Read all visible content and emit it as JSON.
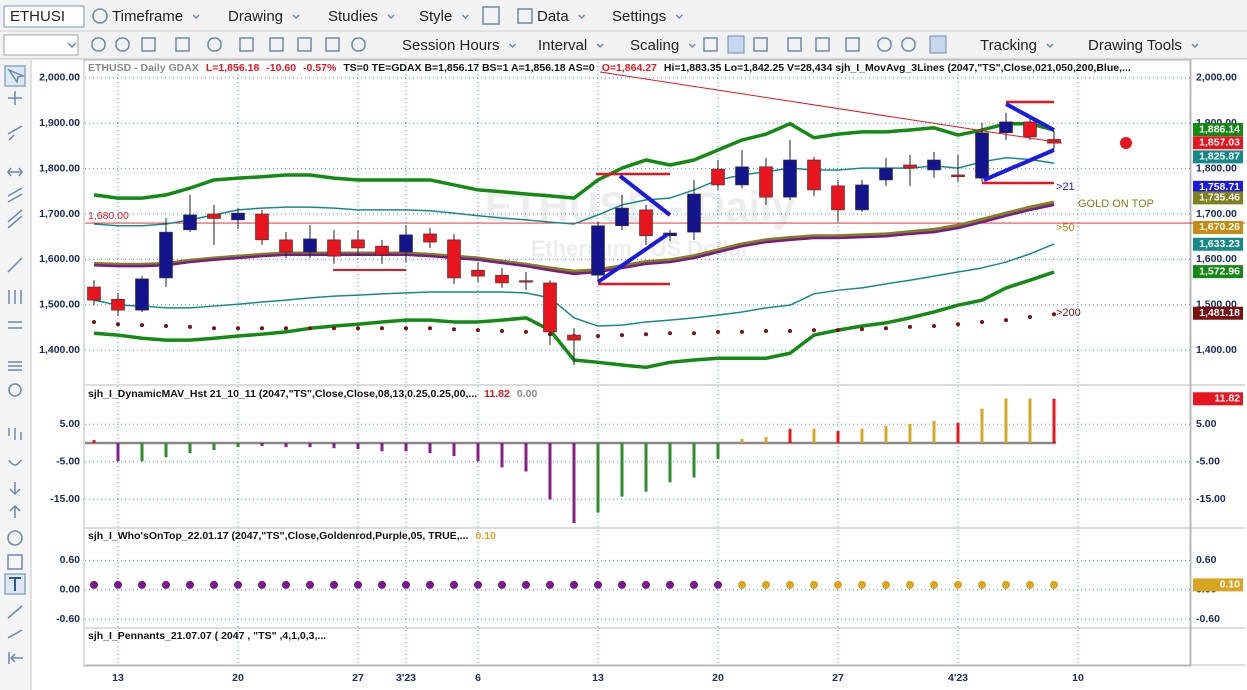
{
  "toolbar": {
    "symbol": "ETHUSI",
    "items": [
      "Timeframe",
      "Drawing",
      "Studies",
      "Style",
      "Data",
      "Settings"
    ],
    "items2": [
      "Session Hours",
      "Interval",
      "Scaling",
      "Tracking",
      "Drawing Tools"
    ]
  },
  "chart_data": [
    {
      "type": "candlestick",
      "header": [
        {
          "text": "ETHUSD - Daily  GDAX",
          "color": "#8a8a8a"
        },
        {
          "text": "L=1,856.18",
          "color": "#e8141e"
        },
        {
          "text": "-10.60",
          "color": "#e8141e"
        },
        {
          "text": "-0.57%",
          "color": "#e8141e"
        },
        {
          "text": "TS=0  TE=GDAX  B=1,856.17  BS=1  A=1,856.18  AS=0",
          "color": "#111111"
        },
        {
          "text": "O=1,864.27",
          "color": "#e8141e"
        },
        {
          "text": "Hi=1,883.35  Lo=1,842.25  V=28,434  sjh_I_MovAvg_3Lines (2047,\"TS\",Close,021,050,200,Blue,...",
          "color": "#111111"
        }
      ],
      "watermark": [
        "ETHUSD - Daily",
        "Ethereum / US Dollar"
      ],
      "categories": [
        null,
        "13",
        null,
        null,
        null,
        null,
        "20",
        null,
        null,
        null,
        null,
        "27",
        null,
        "3'23",
        null,
        null,
        "6",
        null,
        null,
        null,
        null,
        "13",
        null,
        null,
        null,
        null,
        "20",
        null,
        null,
        null,
        null,
        "27",
        null,
        null,
        null,
        null,
        "4'23",
        null,
        null,
        null,
        null,
        "10"
      ],
      "open": [
        1539,
        1512,
        1488,
        1559,
        1665,
        1700,
        1687,
        1700,
        1643,
        1616,
        1643,
        1643,
        1629,
        1616,
        1656,
        1643,
        1576,
        1565,
        1553,
        1548,
        1433,
        1565,
        1674,
        1709,
        1652,
        1660,
        1799,
        1764,
        1804,
        1737,
        1819,
        1762,
        1709,
        1775,
        1808,
        1797,
        1786,
        1779,
        1879,
        1903,
        1864.27,
        null
      ],
      "high": [
        1554,
        1526,
        1563,
        1691,
        1742,
        1720,
        1713,
        1709,
        1660,
        1676,
        1665,
        1665,
        1643,
        1676,
        1669,
        1656,
        1594,
        1581,
        1572,
        1554,
        1448,
        1683,
        1742,
        1720,
        1665,
        1775,
        1819,
        1841,
        1823,
        1863,
        1826,
        1775,
        1775,
        1823,
        1830,
        1837,
        1830,
        1901,
        1923,
        1917,
        1883.35,
        null
      ],
      "low": [
        1499,
        1475,
        1484,
        1539,
        1660,
        1632,
        1667,
        1632,
        1603,
        1603,
        1590,
        1607,
        1590,
        1594,
        1625,
        1546,
        1550,
        1537,
        1532,
        1411,
        1367,
        1554,
        1665,
        1632,
        1640,
        1643,
        1753,
        1757,
        1720,
        1731,
        1740,
        1683,
        1705,
        1762,
        1762,
        1780,
        1771,
        1771,
        1863,
        1863,
        1842.25,
        null
      ],
      "close": [
        1510,
        1488,
        1557,
        1660,
        1698,
        1690,
        1702,
        1643,
        1616,
        1645,
        1607,
        1625,
        1610,
        1654,
        1638,
        1559,
        1563,
        1548,
        1552,
        1440,
        1422,
        1674,
        1713,
        1652,
        1658,
        1744,
        1764,
        1804,
        1737,
        1819,
        1753,
        1709,
        1764,
        1801,
        1801,
        1819,
        1782,
        1879,
        1903,
        1870,
        1856.18,
        null
      ],
      "up_color": "#14148c",
      "down_color": "#e8141e",
      "series": [
        {
          "color": "#138a13",
          "style": "line",
          "width": 3.5,
          "values": [
            1742,
            1735,
            1735,
            1742,
            1757,
            1775,
            1779,
            1782,
            1786,
            1786,
            1779,
            1775,
            1775,
            1775,
            1775,
            1764,
            1753,
            1749,
            1744,
            1740,
            1735,
            1775,
            1801,
            1819,
            1808,
            1819,
            1841,
            1863,
            1876,
            1899,
            1868,
            1876,
            1881,
            1881,
            1885,
            1890,
            1874,
            1885,
            1899,
            1899,
            1885,
            null
          ]
        },
        {
          "color": "#138a13",
          "style": "line",
          "width": 3.5,
          "values": [
            1437,
            1433,
            1426,
            1422,
            1422,
            1426,
            1431,
            1435,
            1440,
            1448,
            1453,
            1457,
            1462,
            1466,
            1466,
            1462,
            1462,
            1466,
            1471,
            1444,
            1378,
            1373,
            1367,
            1362,
            1373,
            1378,
            1382,
            1382,
            1382,
            1393,
            1433,
            1444,
            1453,
            1460,
            1471,
            1484,
            1499,
            1510,
            1537,
            1554,
            1572,
            null
          ]
        },
        {
          "color": "#168a8a",
          "style": "line",
          "width": 1.5,
          "values": [
            1678,
            1674,
            1674,
            1678,
            1687,
            1698,
            1709,
            1713,
            1715,
            1715,
            1713,
            1709,
            1709,
            1709,
            1707,
            1702,
            1696,
            1691,
            1687,
            1682,
            1678,
            1698,
            1720,
            1731,
            1735,
            1753,
            1775,
            1786,
            1793,
            1801,
            1797,
            1797,
            1801,
            1801,
            1801,
            1806,
            1801,
            1815,
            1824,
            1820,
            1812,
            null
          ]
        },
        {
          "color": "#168a8a",
          "style": "line",
          "width": 1.5,
          "values": [
            1510,
            1499,
            1497,
            1493,
            1493,
            1497,
            1501,
            1506,
            1510,
            1515,
            1519,
            1521,
            1524,
            1526,
            1528,
            1528,
            1528,
            1528,
            1526,
            1515,
            1471,
            1453,
            1455,
            1462,
            1466,
            1471,
            1477,
            1484,
            1493,
            1499,
            1524,
            1532,
            1537,
            1546,
            1554,
            1563,
            1572,
            1581,
            1594,
            1612,
            1634,
            null
          ]
        },
        {
          "color": "#808020",
          "style": "line",
          "width": 4,
          "values": [
            1590,
            1588,
            1588,
            1590,
            1597,
            1602,
            1606,
            1610,
            1613,
            1613,
            1613,
            1613,
            1613,
            1613,
            1610,
            1606,
            1602,
            1595,
            1588,
            1580,
            1573,
            1576,
            1585,
            1594,
            1598,
            1607,
            1620,
            1633,
            1642,
            1647,
            1651,
            1651,
            1653,
            1655,
            1660,
            1665,
            1674,
            1687,
            1701,
            1714,
            1725,
            null
          ]
        },
        {
          "color": "#7a1a8a",
          "style": "line",
          "width": 2.5,
          "values": [
            1587,
            1585,
            1585,
            1587,
            1594,
            1599,
            1603,
            1607,
            1610,
            1610,
            1610,
            1610,
            1610,
            1610,
            1607,
            1603,
            1599,
            1592,
            1585,
            1576,
            1568,
            1572,
            1581,
            1590,
            1594,
            1603,
            1616,
            1629,
            1638,
            1643,
            1647,
            1647,
            1649,
            1651,
            1656,
            1660,
            1669,
            1682,
            1696,
            1709,
            1720,
            null
          ]
        },
        {
          "color": "#7a1010",
          "style": "dots",
          "width": 2,
          "values": [
            1462,
            1457,
            1455,
            1453,
            1451,
            1448,
            1448,
            1448,
            1448,
            1448,
            1448,
            1448,
            1448,
            1448,
            1448,
            1446,
            1444,
            1442,
            1440,
            1435,
            1431,
            1431,
            1433,
            1435,
            1437,
            1437,
            1440,
            1440,
            1442,
            1442,
            1444,
            1444,
            1446,
            1448,
            1451,
            1453,
            1457,
            1462,
            1466,
            1473,
            1479,
            null
          ]
        }
      ],
      "hline": {
        "value": 1680,
        "label": "1,680.00",
        "color": "#e8141e"
      },
      "annotations": [
        {
          "text": ">21",
          "color": "#1a1ae0"
        },
        {
          "text": "GOLD ON TOP",
          "color": "#808020"
        },
        {
          "text": ">50",
          "color": "#c88a10"
        },
        {
          "text": ">200",
          "color": "#7a1010"
        }
      ],
      "price_labels": [
        {
          "value": 1886.14,
          "label": "1,886.14",
          "color": "#138a13"
        },
        {
          "value": 1857.03,
          "label": "1,857.03",
          "color": "#e8141e"
        },
        {
          "value": 1825.87,
          "label": "1,825.87",
          "color": "#168a8a"
        },
        {
          "value": 1758.71,
          "label": "1,758.71",
          "color": "#1a1ae0"
        },
        {
          "value": 1735.46,
          "label": "1,735.46",
          "color": "#808020"
        },
        {
          "value": 1670.26,
          "label": "1,670.26",
          "color": "#c88a10"
        },
        {
          "value": 1633.23,
          "label": "1,633.23",
          "color": "#168a8a"
        },
        {
          "value": 1572.96,
          "label": "1,572.96",
          "color": "#138a13"
        },
        {
          "value": 1481.18,
          "label": "1,481.18",
          "color": "#7a1010"
        }
      ],
      "ylim": [
        1323,
        2035
      ],
      "yticks": [
        {
          "value": 1400,
          "label": "1,400.00"
        },
        {
          "value": 1500,
          "label": "1,500.00"
        },
        {
          "value": 1600,
          "label": "1,600.00"
        },
        {
          "value": 1700,
          "label": "1,700.00"
        },
        {
          "value": 1800,
          "label": "1,800.00"
        },
        {
          "value": 1900,
          "label": "1,900.00"
        },
        {
          "value": 2000,
          "label": "2,000.00"
        }
      ],
      "grid": true
    },
    {
      "type": "bar",
      "header": [
        {
          "text": "sjh_I_DynamicMAV_Hst 21_10_11 (2047,\"TS\",Close,Close,08,13,0.25,0.25,00,...",
          "color": "#111111"
        },
        {
          "text": "11.82",
          "color": "#e8141e"
        },
        {
          "text": "0.00",
          "color": "#8a8a8a"
        }
      ],
      "values": [
        0.8,
        -4.9,
        -4.9,
        -3.8,
        -2.7,
        -1.9,
        -1.1,
        -0.8,
        -1.1,
        -1.1,
        -1.4,
        -1.6,
        -2.2,
        -2.2,
        -2.7,
        -3.5,
        -4.9,
        -6.5,
        -7.6,
        -15.1,
        -21.4,
        -18.6,
        -14.3,
        -13,
        -10.5,
        -9.2,
        -4.3,
        1.1,
        1.6,
        3.8,
        3.8,
        3.2,
        3.8,
        4.6,
        5.1,
        5.9,
        5.4,
        9.2,
        11.9,
        11.9,
        11.82,
        null
      ],
      "colors": [
        "#e8141e",
        "#8b1a8b",
        "#2e8b2e",
        "#2e8b2e",
        "#2e8b2e",
        "#2e8b2e",
        "#2e8b2e",
        "#8b1a8b",
        "#8b1a8b",
        "#8b1a8b",
        "#8b1a8b",
        "#8b1a8b",
        "#8b1a8b",
        "#8b1a8b",
        "#8b1a8b",
        "#8b1a8b",
        "#8b1a8b",
        "#8b1a8b",
        "#8b1a8b",
        "#8b1a8b",
        "#8b1a8b",
        "#2e8b2e",
        "#2e8b2e",
        "#2e8b2e",
        "#2e8b2e",
        "#2e8b2e",
        "#2e8b2e",
        "#daa520",
        "#daa520",
        "#e8141e",
        "#daa520",
        "#e8141e",
        "#daa520",
        "#daa520",
        "#daa520",
        "#daa520",
        "#e8141e",
        "#daa520",
        "#daa520",
        "#daa520",
        "#e8141e",
        null
      ],
      "price_labels": [
        {
          "value": 11.82,
          "label": "11.82",
          "color": "#e8141e"
        }
      ],
      "ylim": [
        -22.7,
        14.7
      ],
      "yticks": [
        {
          "value": 5,
          "label": "5.00"
        },
        {
          "value": -5,
          "label": "-5.00"
        },
        {
          "value": -15,
          "label": "-15.00"
        }
      ],
      "grid": true
    },
    {
      "type": "dots",
      "header": [
        {
          "text": "sjh_I_Who'sOnTop_22.01.17 (2047,\"TS\",Close,Goldenrod,Purple,05, TRUE,...",
          "color": "#111111"
        },
        {
          "text": "0.10",
          "color": "#daa520"
        }
      ],
      "values": [
        0.1,
        0.1,
        0.1,
        0.1,
        0.1,
        0.1,
        0.1,
        0.1,
        0.1,
        0.1,
        0.1,
        0.1,
        0.1,
        0.1,
        0.1,
        0.1,
        0.1,
        0.1,
        0.1,
        0.1,
        0.1,
        0.1,
        0.1,
        0.1,
        0.1,
        0.1,
        0.1,
        0.1,
        0.1,
        0.1,
        0.1,
        0.1,
        0.1,
        0.1,
        0.1,
        0.1,
        0.1,
        0.1,
        0.1,
        0.1,
        0.1,
        null
      ],
      "colors": [
        "#7a1a8a",
        "#7a1a8a",
        "#7a1a8a",
        "#7a1a8a",
        "#7a1a8a",
        "#7a1a8a",
        "#7a1a8a",
        "#7a1a8a",
        "#7a1a8a",
        "#7a1a8a",
        "#7a1a8a",
        "#7a1a8a",
        "#7a1a8a",
        "#7a1a8a",
        "#7a1a8a",
        "#7a1a8a",
        "#7a1a8a",
        "#7a1a8a",
        "#7a1a8a",
        "#7a1a8a",
        "#7a1a8a",
        "#7a1a8a",
        "#7a1a8a",
        "#7a1a8a",
        "#7a1a8a",
        "#7a1a8a",
        "#7a1a8a",
        "#daa520",
        "#daa520",
        "#daa520",
        "#daa520",
        "#daa520",
        "#daa520",
        "#daa520",
        "#daa520",
        "#daa520",
        "#daa520",
        "#daa520",
        "#daa520",
        "#daa520",
        "#daa520",
        null
      ],
      "price_labels": [
        {
          "value": 0.1,
          "label": "0.10",
          "color": "#daa520"
        }
      ],
      "ylim": [
        -0.78,
        1.22
      ],
      "yticks": [
        {
          "value": 0.6,
          "label": "0.60"
        },
        {
          "value": 0,
          "label": "0.00"
        },
        {
          "value": -0.6,
          "label": "-0.60"
        }
      ],
      "grid": true
    },
    {
      "type": "study",
      "header": [
        {
          "text": "sjh_I_Pennants_21.07.07 ( 2047 , \"TS\" ,4,1,0,3,...",
          "color": "#111111"
        }
      ]
    }
  ]
}
